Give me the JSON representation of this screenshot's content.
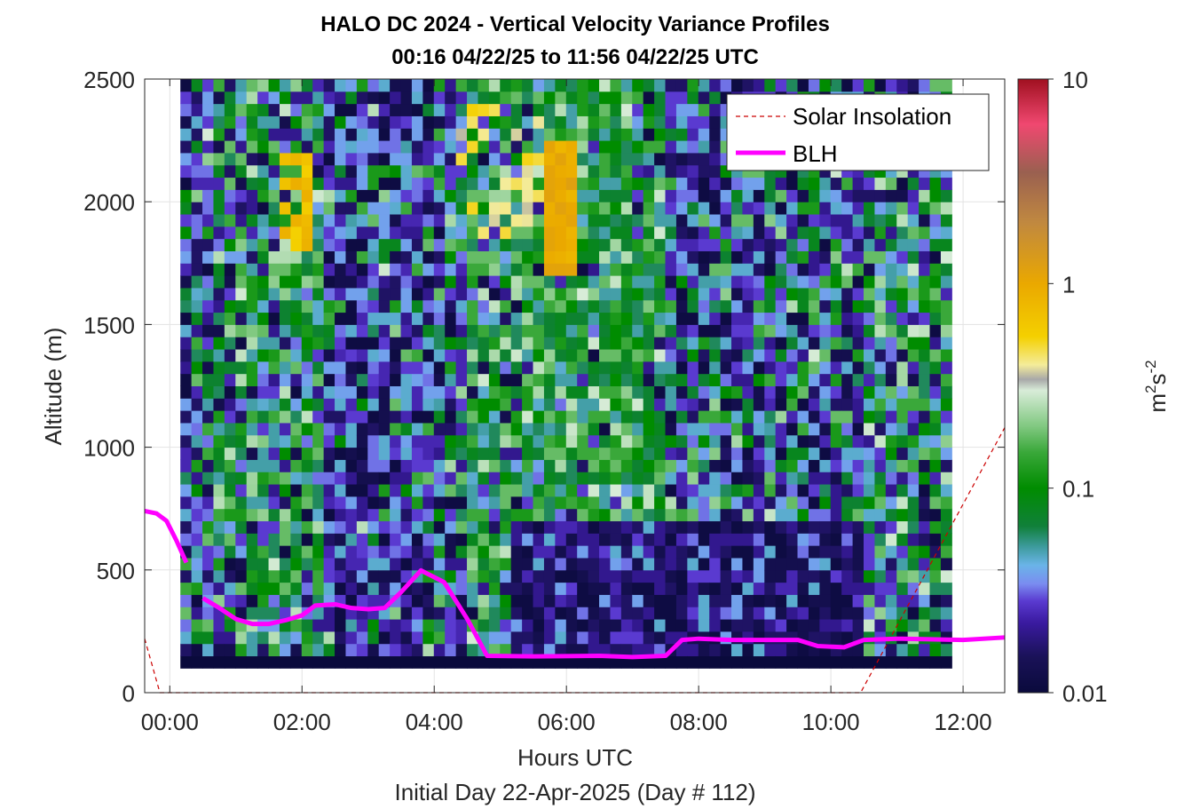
{
  "chart_data": {
    "type": "heatmap",
    "title": "HALO DC 2024 - Vertical Velocity Variance Profiles",
    "subtitle": "00:16 04/22/25 to 11:56 04/22/25  UTC",
    "xlabel": "Hours UTC",
    "footer": "Initial Day 22-Apr-2025 (Day # 112)",
    "ylabel": "Altitude (m)",
    "xlim_hours": [
      -0.38,
      12.63
    ],
    "ylim": [
      0,
      2500
    ],
    "x_ticks": [
      {
        "value": 0,
        "label": "00:00"
      },
      {
        "value": 2,
        "label": "02:00"
      },
      {
        "value": 4,
        "label": "04:00"
      },
      {
        "value": 6,
        "label": "06:00"
      },
      {
        "value": 8,
        "label": "08:00"
      },
      {
        "value": 10,
        "label": "10:00"
      },
      {
        "value": 12,
        "label": "12:00"
      }
    ],
    "y_ticks": [
      {
        "value": 0,
        "label": "0"
      },
      {
        "value": 500,
        "label": "500"
      },
      {
        "value": 1000,
        "label": "1000"
      },
      {
        "value": 1500,
        "label": "1500"
      },
      {
        "value": 2000,
        "label": "2000"
      },
      {
        "value": 2500,
        "label": "2500"
      }
    ],
    "grid": true,
    "colorbar": {
      "label_base": "m",
      "label_exp1": "2",
      "label_mid": "s",
      "label_exp2": "-2",
      "scale": "log",
      "range": [
        0.01,
        10
      ],
      "ticks": [
        {
          "value": 0.01,
          "label": "0.01"
        },
        {
          "value": 0.1,
          "label": "0.1"
        },
        {
          "value": 1,
          "label": "1"
        },
        {
          "value": 10,
          "label": "10"
        }
      ],
      "stops": [
        {
          "v": 0.01,
          "c": "#0a0a3c"
        },
        {
          "v": 0.015,
          "c": "#1a1258"
        },
        {
          "v": 0.022,
          "c": "#3a1aa0"
        },
        {
          "v": 0.028,
          "c": "#5a3ad0"
        },
        {
          "v": 0.034,
          "c": "#7a8cf0"
        },
        {
          "v": 0.042,
          "c": "#6ab4e8"
        },
        {
          "v": 0.052,
          "c": "#3c9a9a"
        },
        {
          "v": 0.065,
          "c": "#10803a"
        },
        {
          "v": 0.1,
          "c": "#008c00"
        },
        {
          "v": 0.15,
          "c": "#3aa83a"
        },
        {
          "v": 0.2,
          "c": "#80c880"
        },
        {
          "v": 0.3,
          "c": "#d8ecd8"
        },
        {
          "v": 0.34,
          "c": "#a8a8a8"
        },
        {
          "v": 0.4,
          "c": "#f4ec9a"
        },
        {
          "v": 0.55,
          "c": "#f4d000"
        },
        {
          "v": 1,
          "c": "#eaa800"
        },
        {
          "v": 2,
          "c": "#c08840"
        },
        {
          "v": 3.5,
          "c": "#9a6050"
        },
        {
          "v": 6,
          "c": "#f04870"
        },
        {
          "v": 10,
          "c": "#a01020"
        }
      ]
    },
    "legend": {
      "position": "top-right",
      "entries": [
        {
          "name": "Solar Insolation",
          "style": "dashed",
          "color": "#cc0000"
        },
        {
          "name": "BLH",
          "style": "solid",
          "color": "#ff00ff"
        }
      ]
    },
    "heatmap": {
      "x_start_hours": 0.16,
      "x_step_hours": 0.1667,
      "y_start": 100,
      "y_step": 50,
      "columns": 70,
      "rows": 48
    },
    "blh": [
      {
        "t": -0.38,
        "alt": 740
      },
      {
        "t": -0.2,
        "alt": 730
      },
      {
        "t": -0.05,
        "alt": 700
      },
      {
        "t": 0.1,
        "alt": 620
      },
      {
        "t": 0.25,
        "alt": 530
      },
      {
        "gap": true
      },
      {
        "t": 0.5,
        "alt": 385
      },
      {
        "t": 0.75,
        "alt": 345
      },
      {
        "t": 1.0,
        "alt": 300
      },
      {
        "t": 1.25,
        "alt": 280
      },
      {
        "t": 1.5,
        "alt": 280
      },
      {
        "t": 1.75,
        "alt": 295
      },
      {
        "t": 2.0,
        "alt": 315
      },
      {
        "t": 2.2,
        "alt": 355
      },
      {
        "t": 2.5,
        "alt": 360
      },
      {
        "t": 2.75,
        "alt": 345
      },
      {
        "t": 3.0,
        "alt": 340
      },
      {
        "t": 3.25,
        "alt": 345
      },
      {
        "t": 3.5,
        "alt": 410
      },
      {
        "t": 3.8,
        "alt": 498
      },
      {
        "t": 4.15,
        "alt": 450
      },
      {
        "t": 4.5,
        "alt": 300
      },
      {
        "t": 4.8,
        "alt": 150
      },
      {
        "t": 5.5,
        "alt": 148
      },
      {
        "t": 6.5,
        "alt": 150
      },
      {
        "t": 7.0,
        "alt": 145
      },
      {
        "t": 7.5,
        "alt": 150
      },
      {
        "t": 7.75,
        "alt": 215
      },
      {
        "t": 8.0,
        "alt": 220
      },
      {
        "t": 8.5,
        "alt": 215
      },
      {
        "t": 9.0,
        "alt": 215
      },
      {
        "t": 9.5,
        "alt": 215
      },
      {
        "t": 9.8,
        "alt": 190
      },
      {
        "t": 10.2,
        "alt": 185
      },
      {
        "t": 10.5,
        "alt": 215
      },
      {
        "t": 11.0,
        "alt": 220
      },
      {
        "t": 12.0,
        "alt": 215
      },
      {
        "t": 12.63,
        "alt": 225
      }
    ],
    "solar_insolation": [
      {
        "t": -0.38,
        "alt": 220
      },
      {
        "t": -0.15,
        "alt": 0
      },
      {
        "t": 10.45,
        "alt": 0
      },
      {
        "t": 12.63,
        "alt": 1080
      }
    ]
  }
}
